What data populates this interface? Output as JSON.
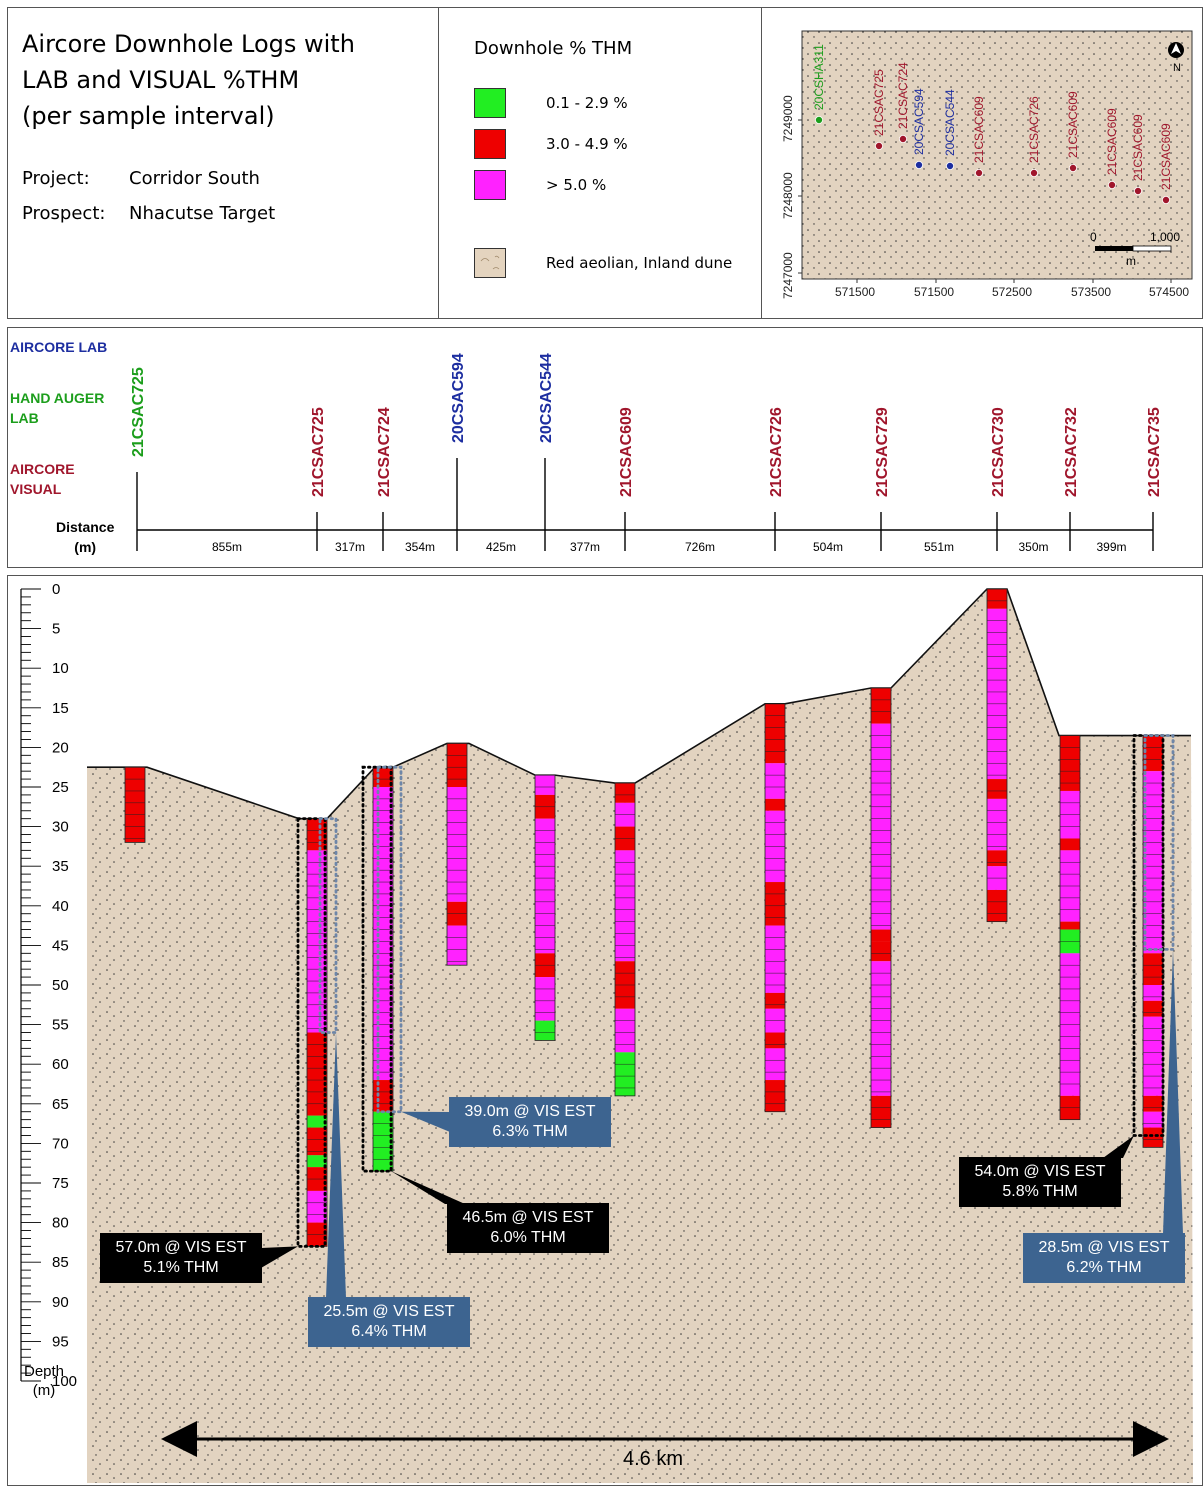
{
  "header": {
    "title_lines": [
      "Aircore Downhole Logs with",
      "LAB and VISUAL  %THM",
      "(per sample interval)"
    ],
    "project_label": "Project:",
    "project_value": "Corridor South",
    "prospect_label": "Prospect:",
    "prospect_value": "Nhacutse Target"
  },
  "legend": {
    "title": "Downhole % THM",
    "items": [
      {
        "label": "0.1 - 2.9 %",
        "color": "#22ee22"
      },
      {
        "label": "3.0 - 4.9 %",
        "color": "#ee0000"
      },
      {
        "label": "> 5.0 %",
        "color": "#ff22ff"
      },
      {
        "label": "Red aeolian, Inland dune",
        "color": "#e4d4bf"
      }
    ]
  },
  "colors": {
    "lab": "#1d2ea0",
    "hand_auger": "#1c9e1c",
    "visual": "#a0162c",
    "sand": "#e2d3c0",
    "green": "#22ee22",
    "red": "#ee0000",
    "magenta": "#ff22ff",
    "callout_black": "#000000",
    "callout_blue": "#3d6490"
  },
  "map": {
    "y_ticks": [
      "7249000",
      "7248000",
      "7247000"
    ],
    "x_ticks": [
      "571500",
      "571500",
      "572500",
      "573500",
      "574500"
    ],
    "north_label": "N",
    "scale_start": "0",
    "scale_end": "1,000",
    "scale_unit": "m",
    "holes": [
      {
        "id": "20CSHA311",
        "type": "hand_auger"
      },
      {
        "id": "21CSAC725",
        "type": "visual"
      },
      {
        "id": "21CSAC724",
        "type": "visual"
      },
      {
        "id": "20CSAC594",
        "type": "lab"
      },
      {
        "id": "20CSAC544",
        "type": "lab"
      },
      {
        "id": "21CSAC609",
        "type": "visual"
      },
      {
        "id": "21CSAC726",
        "type": "visual"
      },
      {
        "id": "21CSAC609",
        "type": "visual"
      },
      {
        "id": "21CSAC609",
        "type": "visual"
      },
      {
        "id": "21CSAC609",
        "type": "visual"
      },
      {
        "id": "21CSAC609",
        "type": "visual"
      }
    ]
  },
  "section": {
    "legend_lab": "AIRCORE LAB",
    "legend_hand_auger": [
      "HAND AUGER",
      "LAB"
    ],
    "legend_visual": [
      "AIRCORE",
      "VISUAL"
    ],
    "distance_label": [
      "Distance",
      "(m)"
    ],
    "holes": [
      {
        "id": "21CSAC725",
        "type": "hand_auger"
      },
      {
        "id": "21CSAC725",
        "type": "visual"
      },
      {
        "id": "21CSAC724",
        "type": "visual"
      },
      {
        "id": "20CSAC594",
        "type": "lab"
      },
      {
        "id": "20CSAC544",
        "type": "lab"
      },
      {
        "id": "21CSAC609",
        "type": "visual"
      },
      {
        "id": "21CSAC726",
        "type": "visual"
      },
      {
        "id": "21CSAC729",
        "type": "visual"
      },
      {
        "id": "21CSAC730",
        "type": "visual"
      },
      {
        "id": "21CSAC732",
        "type": "visual"
      },
      {
        "id": "21CSAC735",
        "type": "visual"
      }
    ],
    "distances": [
      "855m",
      "317m",
      "354m",
      "425m",
      "377m",
      "726m",
      "504m",
      "551m",
      "350m",
      "399m"
    ]
  },
  "depth_axis": {
    "ticks": [
      0,
      5,
      10,
      15,
      20,
      25,
      30,
      35,
      40,
      45,
      50,
      55,
      60,
      65,
      70,
      75,
      80,
      85,
      90,
      95,
      100
    ],
    "label": [
      "Depth",
      "(m)"
    ]
  },
  "logs": [
    {
      "collar": 22.5,
      "intervals": [
        [
          22.5,
          32,
          "r"
        ]
      ]
    },
    {
      "collar": 29,
      "intervals": [
        [
          29,
          33,
          "r"
        ],
        [
          33,
          56,
          "m"
        ],
        [
          56,
          66.5,
          "r"
        ],
        [
          66.5,
          68,
          "g"
        ],
        [
          68,
          71.5,
          "r"
        ],
        [
          71.5,
          73,
          "g"
        ],
        [
          73,
          76,
          "r"
        ],
        [
          76,
          80,
          "m"
        ],
        [
          80,
          83,
          "r"
        ]
      ]
    },
    {
      "collar": 22.5,
      "intervals": [
        [
          22.5,
          25,
          "r"
        ],
        [
          25,
          62,
          "m"
        ],
        [
          62,
          66,
          "r"
        ],
        [
          66,
          73.5,
          "g"
        ]
      ]
    },
    {
      "collar": 19.5,
      "intervals": [
        [
          19.5,
          25,
          "r"
        ],
        [
          25,
          39.5,
          "m"
        ],
        [
          39.5,
          42.5,
          "r"
        ],
        [
          42.5,
          47.5,
          "m"
        ]
      ]
    },
    {
      "collar": 23.5,
      "intervals": [
        [
          23.5,
          26,
          "m"
        ],
        [
          26,
          29,
          "r"
        ],
        [
          29,
          46,
          "m"
        ],
        [
          46,
          49,
          "r"
        ],
        [
          49,
          54.5,
          "m"
        ],
        [
          54.5,
          57,
          "g"
        ]
      ]
    },
    {
      "collar": 24.5,
      "intervals": [
        [
          24.5,
          27,
          "r"
        ],
        [
          27,
          30,
          "m"
        ],
        [
          30,
          33,
          "r"
        ],
        [
          33,
          47,
          "m"
        ],
        [
          47,
          53,
          "r"
        ],
        [
          53,
          58.5,
          "m"
        ],
        [
          58.5,
          64,
          "g"
        ]
      ]
    },
    {
      "collar": 14.5,
      "intervals": [
        [
          14.5,
          22,
          "r"
        ],
        [
          22,
          26.5,
          "m"
        ],
        [
          26.5,
          28,
          "r"
        ],
        [
          28,
          37,
          "m"
        ],
        [
          37,
          42.5,
          "r"
        ],
        [
          42.5,
          51,
          "m"
        ],
        [
          51,
          53,
          "r"
        ],
        [
          53,
          56,
          "m"
        ],
        [
          56,
          58,
          "r"
        ],
        [
          58,
          62,
          "m"
        ],
        [
          62,
          66,
          "r"
        ]
      ]
    },
    {
      "collar": 12.5,
      "intervals": [
        [
          12.5,
          17,
          "r"
        ],
        [
          17,
          43,
          "m"
        ],
        [
          43,
          44.5,
          "r"
        ],
        [
          44.5,
          47,
          "r"
        ],
        [
          47,
          64,
          "m"
        ],
        [
          64,
          68,
          "r"
        ]
      ]
    },
    {
      "collar": 0,
      "intervals": [
        [
          0,
          2.5,
          "r"
        ],
        [
          2.5,
          24,
          "m"
        ],
        [
          24,
          26.5,
          "r"
        ],
        [
          26.5,
          33,
          "m"
        ],
        [
          33,
          35,
          "r"
        ],
        [
          35,
          38,
          "m"
        ],
        [
          38,
          42,
          "r"
        ]
      ]
    },
    {
      "collar": 18.5,
      "intervals": [
        [
          18.5,
          25.5,
          "r"
        ],
        [
          25.5,
          31.5,
          "m"
        ],
        [
          31.5,
          33,
          "r"
        ],
        [
          33,
          42,
          "m"
        ],
        [
          42,
          43,
          "r"
        ],
        [
          43,
          46,
          "g"
        ],
        [
          46,
          64,
          "m"
        ],
        [
          64,
          67,
          "r"
        ]
      ]
    },
    {
      "collar": 18.5,
      "intervals": [
        [
          18.5,
          23,
          "r"
        ],
        [
          23,
          46,
          "m"
        ],
        [
          46,
          50,
          "r"
        ],
        [
          50,
          52,
          "m"
        ],
        [
          52,
          54,
          "r"
        ],
        [
          54,
          64,
          "m"
        ],
        [
          64,
          66,
          "r"
        ],
        [
          66,
          68,
          "m"
        ],
        [
          68,
          70.5,
          "r"
        ]
      ]
    }
  ],
  "callouts": [
    {
      "lines": [
        "57.0m @ VIS EST",
        "5.1% THM"
      ],
      "style": "black"
    },
    {
      "lines": [
        "25.5m @ VIS EST",
        "6.4% THM"
      ],
      "style": "blue"
    },
    {
      "lines": [
        "46.5m @ VIS EST",
        "6.0% THM"
      ],
      "style": "black"
    },
    {
      "lines": [
        "39.0m @ VIS EST",
        "6.3% THM"
      ],
      "style": "blue"
    },
    {
      "lines": [
        "54.0m @ VIS EST",
        "5.8% THM"
      ],
      "style": "black"
    },
    {
      "lines": [
        "28.5m @ VIS EST",
        "6.2% THM"
      ],
      "style": "blue"
    }
  ],
  "scale_bar_label": "4.6 km"
}
